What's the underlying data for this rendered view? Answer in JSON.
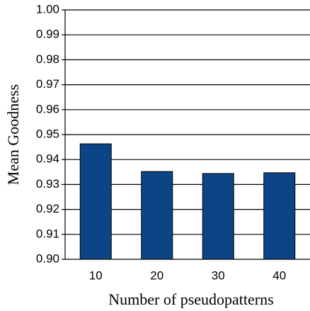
{
  "chart_data": {
    "type": "bar",
    "y_label": "Mean Goodness",
    "x_label": "Number of pseudopatterns",
    "categories": [
      "10",
      "20",
      "30",
      "40"
    ],
    "values": [
      0.9463,
      0.9352,
      0.9344,
      0.9347
    ],
    "color": "#0c4585",
    "ylim": [
      0.9,
      1.0
    ],
    "yticks": [
      {
        "value": 0.9,
        "label": "0.90"
      },
      0.91,
      0.92,
      0.93,
      0.94,
      0.95,
      0.96,
      0.97,
      0.98,
      0.99,
      {
        "value": 1.0,
        "label": "1.00"
      }
    ],
    "grid": true
  }
}
